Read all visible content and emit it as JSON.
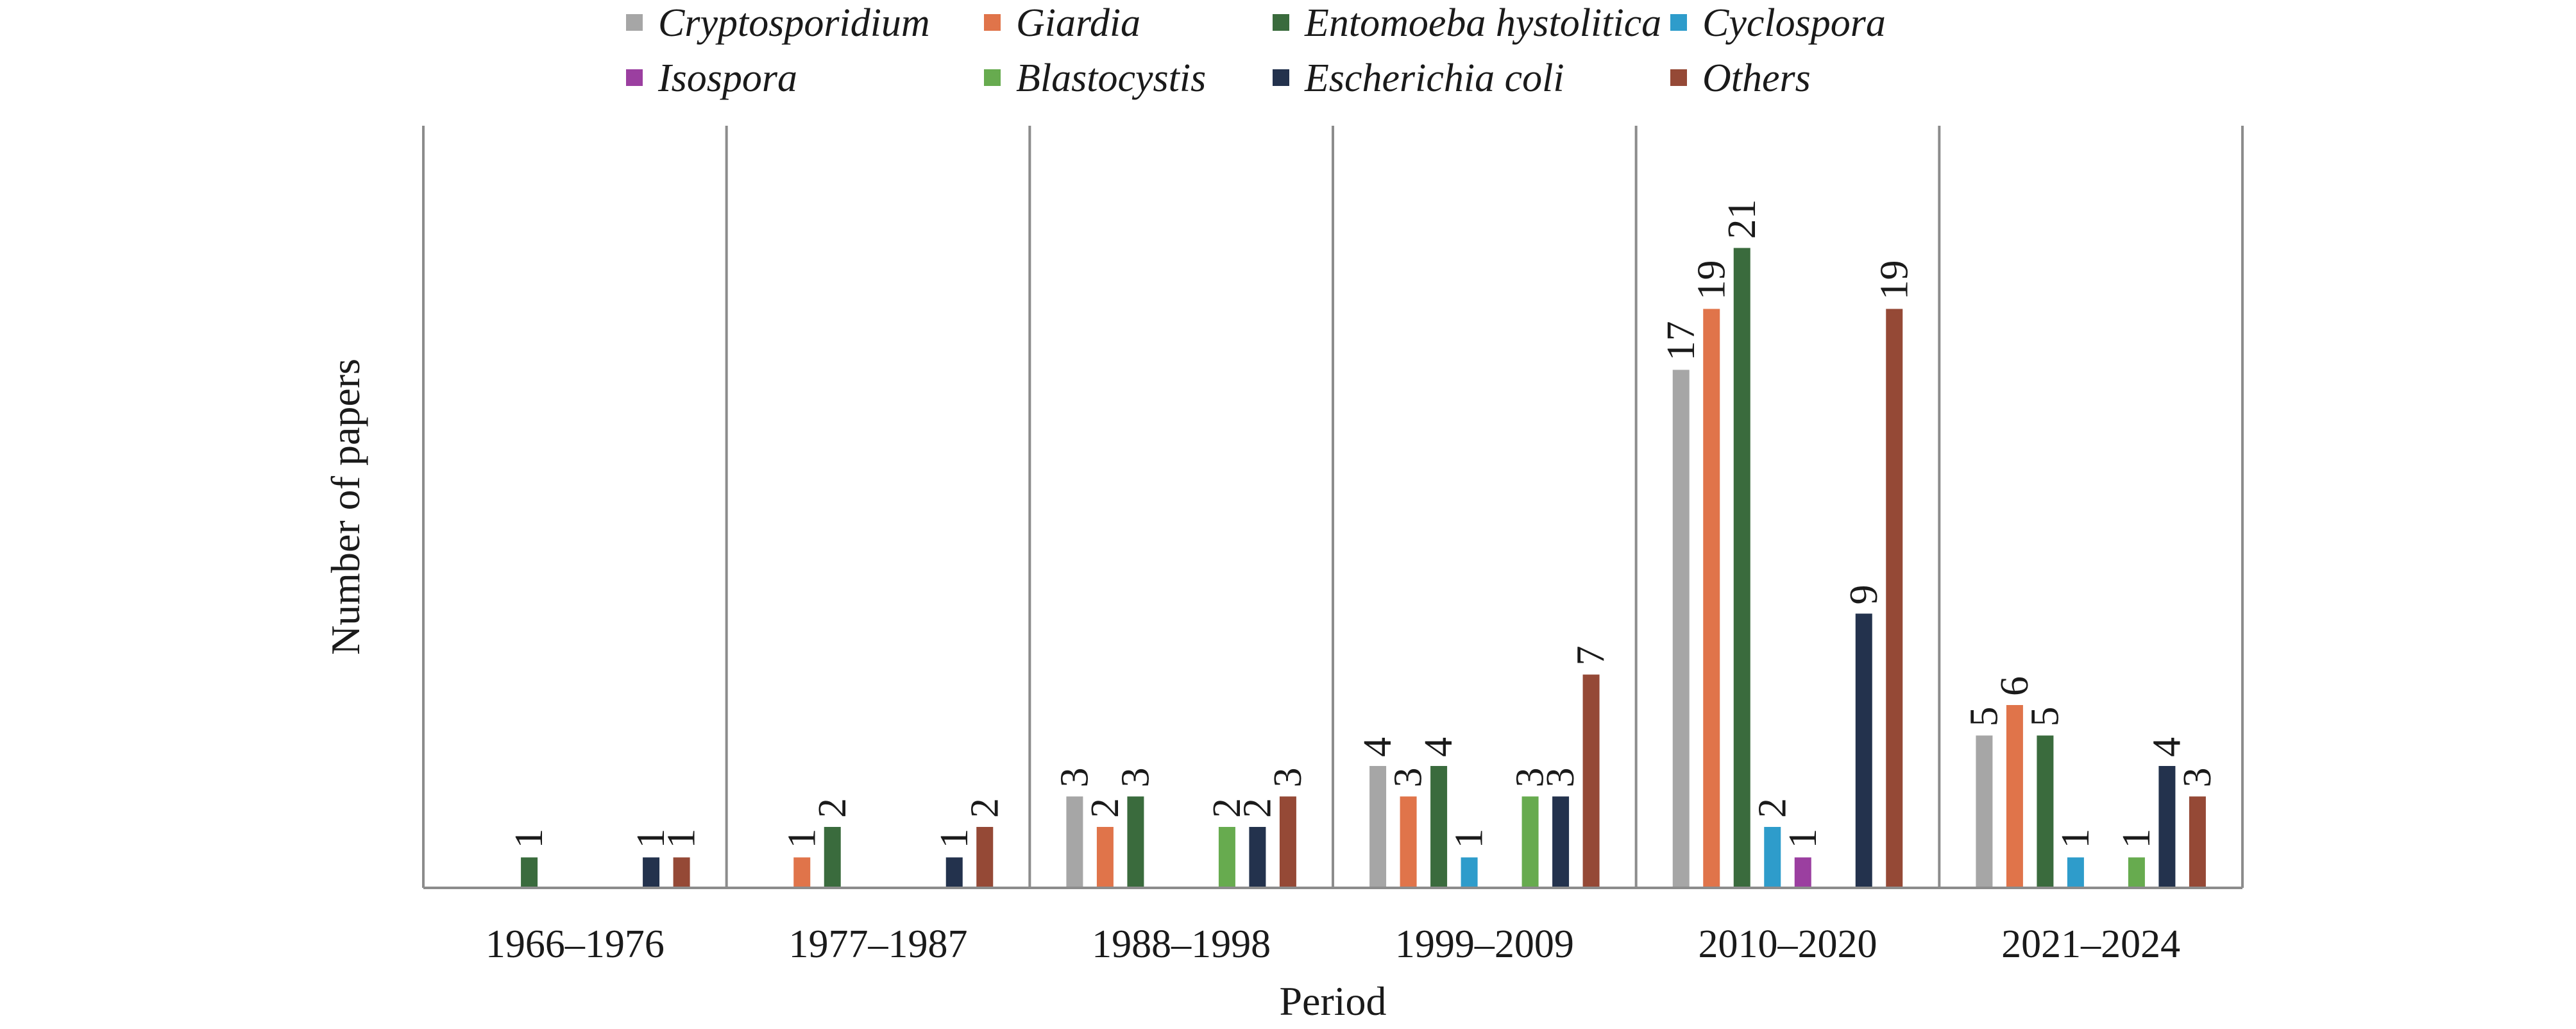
{
  "chart_data": {
    "type": "bar",
    "xlabel": "Period",
    "ylabel": "Number of papers",
    "ylim": [
      0,
      24
    ],
    "grid": false,
    "legend_position": "top",
    "categories": [
      "1966–1976",
      "1977–1987",
      "1988–1998",
      "1999–2009",
      "2010–2020",
      "2021–2024"
    ],
    "series": [
      {
        "name": "Cryptosporidium",
        "color": "#a6a6a6",
        "values": [
          null,
          null,
          3,
          4,
          17,
          5
        ]
      },
      {
        "name": "Giardia",
        "color": "#e0744a",
        "values": [
          null,
          1,
          2,
          3,
          19,
          6
        ]
      },
      {
        "name": "Entomoeba hystolitica",
        "color": "#3a6b3d",
        "values": [
          1,
          2,
          3,
          4,
          21,
          5
        ]
      },
      {
        "name": "Cyclospora",
        "color": "#2e9ccb",
        "values": [
          null,
          null,
          null,
          1,
          2,
          1
        ]
      },
      {
        "name": "Isospora",
        "color": "#9b3fa0",
        "values": [
          null,
          null,
          null,
          null,
          1,
          null
        ]
      },
      {
        "name": "Blastocystis",
        "color": "#67ab4f",
        "values": [
          null,
          null,
          2,
          3,
          null,
          1
        ]
      },
      {
        "name": "Escherichia coli",
        "color": "#23324d",
        "values": [
          1,
          1,
          2,
          3,
          9,
          4
        ]
      },
      {
        "name": "Others",
        "color": "#954936",
        "values": [
          1,
          2,
          3,
          7,
          19,
          3
        ]
      }
    ]
  }
}
